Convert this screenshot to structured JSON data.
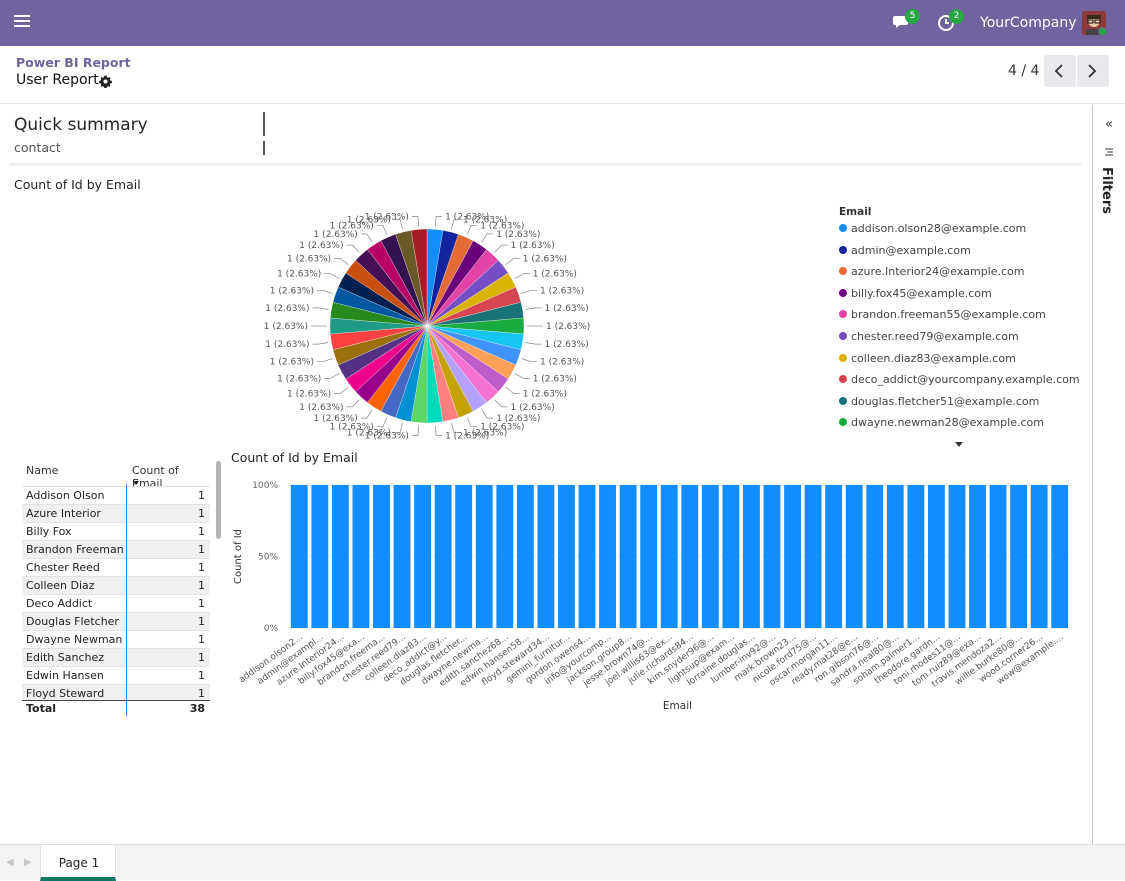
{
  "topbar": {
    "company": "YourCompany",
    "messages_badge": "5",
    "activities_badge": "2",
    "bg_color": "#71639e"
  },
  "control_panel": {
    "breadcrumb_parent": "Power BI Report",
    "breadcrumb_current": "User Report",
    "pager_value": "4 / 4"
  },
  "summary": {
    "title": "Quick summary",
    "subtitle": "contact"
  },
  "filters_label": "Filters",
  "page_tab": "Page 1",
  "table": {
    "col_name": "Name",
    "col_count": "Count of Email",
    "rows": [
      {
        "name": "Addison Olson",
        "count": "1"
      },
      {
        "name": "Azure Interior",
        "count": "1"
      },
      {
        "name": "Billy Fox",
        "count": "1"
      },
      {
        "name": "Brandon Freeman",
        "count": "1"
      },
      {
        "name": "Chester Reed",
        "count": "1"
      },
      {
        "name": "Colleen Diaz",
        "count": "1"
      },
      {
        "name": "Deco Addict",
        "count": "1"
      },
      {
        "name": "Douglas Fletcher",
        "count": "1"
      },
      {
        "name": "Dwayne Newman",
        "count": "1"
      },
      {
        "name": "Edith Sanchez",
        "count": "1"
      },
      {
        "name": "Edwin Hansen",
        "count": "1"
      },
      {
        "name": "Floyd Steward",
        "count": "1"
      }
    ],
    "total_label": "Total",
    "total_value": "38"
  },
  "chart_data": [
    {
      "type": "pie",
      "title": "Count of Id by Email",
      "legend_title": "Email",
      "slice_label": "1 (2.63%)",
      "values": [
        1,
        1,
        1,
        1,
        1,
        1,
        1,
        1,
        1,
        1,
        1,
        1,
        1,
        1,
        1,
        1,
        1,
        1,
        1,
        1,
        1,
        1,
        1,
        1,
        1,
        1,
        1,
        1,
        1,
        1,
        1,
        1,
        1,
        1,
        1,
        1,
        1,
        1
      ],
      "colors": [
        "#118dff",
        "#12239e",
        "#e66c37",
        "#6b007b",
        "#e044a7",
        "#744ec2",
        "#d9b300",
        "#d64550",
        "#197278",
        "#1aab40",
        "#15c6f4",
        "#4092ff",
        "#ffa058",
        "#be5dc9",
        "#f472d0",
        "#b5a1ff",
        "#c4a200",
        "#ff8080",
        "#00dbbc",
        "#5bd667",
        "#0091d5",
        "#4668c5",
        "#ff6300",
        "#99008a",
        "#ec008c",
        "#533285",
        "#99700a",
        "#ff4141",
        "#1f9a85",
        "#25891c",
        "#0057a2",
        "#002050",
        "#c94f0f",
        "#450f54",
        "#b60064",
        "#34124f",
        "#6a5a29",
        "#a61e24"
      ],
      "legend": [
        {
          "label": "addison.olson28@example.com",
          "color": "#118dff"
        },
        {
          "label": "admin@example.com",
          "color": "#12239e"
        },
        {
          "label": "azure.Interior24@example.com",
          "color": "#e66c37"
        },
        {
          "label": "billy.fox45@example.com",
          "color": "#6b007b"
        },
        {
          "label": "brandon.freeman55@example.com",
          "color": "#e044a7"
        },
        {
          "label": "chester.reed79@example.com",
          "color": "#744ec2"
        },
        {
          "label": "colleen.diaz83@example.com",
          "color": "#d9b300"
        },
        {
          "label": "deco_addict@yourcompany.example.com",
          "color": "#d64550"
        },
        {
          "label": "douglas.fletcher51@example.com",
          "color": "#197278"
        },
        {
          "label": "dwayne.newman28@example.com",
          "color": "#1aab40"
        }
      ]
    },
    {
      "type": "bar",
      "title": "Count of Id by Email",
      "xlabel": "Email",
      "ylabel": "Count of Id",
      "ylim": [
        0,
        1
      ],
      "yticks": [
        "0%",
        "50%",
        "100%"
      ],
      "bar_color": "#118dff",
      "categories": [
        "addison.olson2...",
        "admin@exampl...",
        "azure.Interior24...",
        "billy.fox45@exa...",
        "brandon.freema...",
        "chester.reed79...",
        "colleen.diaz83...",
        "deco_addict@y...",
        "douglas.fletcher...",
        "dwayne.newma...",
        "edith.sanchez68...",
        "edwin.hansen58...",
        "floyd.steward34...",
        "gemini_furnitur...",
        "gordon.owens4...",
        "info@yourcomp...",
        "jackson.group8...",
        "jesse.brown74@...",
        "joel.willis63@ex...",
        "julie.richards84...",
        "kim.snyder96@...",
        "lightsup@exam...",
        "lorraine.douglas...",
        "lumber-inv92@...",
        "mark.brown23...",
        "nicole.ford75@...",
        "oscar.morgan11...",
        "ready.mat28@e...",
        "ron.gibson76@...",
        "sandra.neal80@...",
        "soham.palmer1...",
        "theodore.gardn...",
        "toni.rhodes11@...",
        "tom.ruiz89@exa...",
        "travis.mendoza2...",
        "willie.burke80@...",
        "wood.corner26...",
        "wow@example...."
      ],
      "values": [
        1,
        1,
        1,
        1,
        1,
        1,
        1,
        1,
        1,
        1,
        1,
        1,
        1,
        1,
        1,
        1,
        1,
        1,
        1,
        1,
        1,
        1,
        1,
        1,
        1,
        1,
        1,
        1,
        1,
        1,
        1,
        1,
        1,
        1,
        1,
        1,
        1,
        1
      ]
    }
  ]
}
